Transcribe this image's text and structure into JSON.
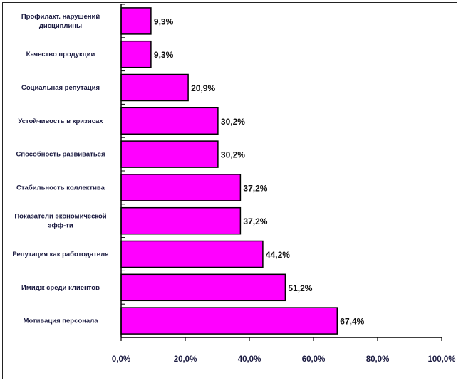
{
  "chart_data": {
    "type": "bar",
    "orientation": "horizontal",
    "categories": [
      [
        "Профилакт. нарушений",
        "дисциплины"
      ],
      [
        "Качество продукции"
      ],
      [
        "Социальная репутация"
      ],
      [
        "Устойчивость в кризисах"
      ],
      [
        "Способность развиваться"
      ],
      [
        "Стабильность коллектива"
      ],
      [
        "Показатели экономической",
        "эфф-ти"
      ],
      [
        "Репутация как работодателя"
      ],
      [
        "Имидж среди клиентов"
      ],
      [
        "Мотивация персонала"
      ]
    ],
    "values": [
      9.3,
      9.3,
      20.9,
      30.2,
      30.2,
      37.2,
      37.2,
      44.2,
      51.2,
      67.4
    ],
    "value_labels": [
      "9,3%",
      "9,3%",
      "20,9%",
      "30,2%",
      "30,2%",
      "37,2%",
      "37,2%",
      "44,2%",
      "51,2%",
      "67,4%"
    ],
    "xlim": [
      0,
      100
    ],
    "x_ticks": [
      0,
      20,
      40,
      60,
      80,
      100
    ],
    "x_tick_labels": [
      "0,0%",
      "20,0%",
      "40,0%",
      "60,0%",
      "80,0%",
      "100,0%"
    ],
    "bar_color": "#ff00ff",
    "title": "",
    "xlabel": "",
    "ylabel": "",
    "grid": false,
    "legend": false
  }
}
